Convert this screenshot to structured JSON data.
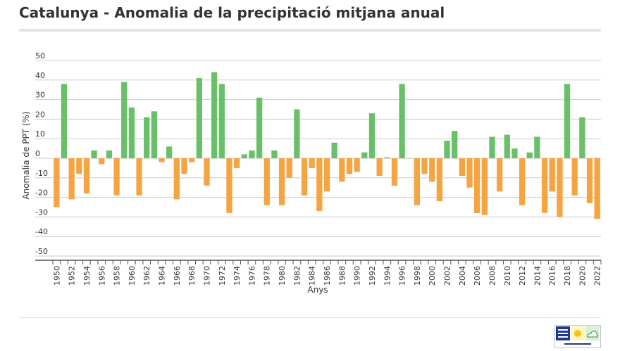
{
  "header": {
    "title": "Catalunya - Anomalia de la precipitació mitjana anual"
  },
  "logo": {
    "icon": "meteocat-logo-icon"
  },
  "colors": {
    "positive": "#6abf69",
    "negative": "#f5a442",
    "grid": "#cccccc"
  },
  "chart_data": {
    "type": "bar",
    "title": "Catalunya - Anomalia de la precipitació mitjana anual",
    "xlabel": "Anys",
    "ylabel": "Anomalia de PPT (%)",
    "ylim": [
      -50,
      50
    ],
    "yticks": [
      50,
      40,
      30,
      20,
      10,
      0,
      -10,
      -20,
      -30,
      -40,
      -50
    ],
    "grid": true,
    "legend": "none",
    "xtick_labels": [
      "1950",
      "1952",
      "1954",
      "1956",
      "1958",
      "1960",
      "1962",
      "1964",
      "1966",
      "1968",
      "1970",
      "1972",
      "1974",
      "1976",
      "1978",
      "1980",
      "1982",
      "1984",
      "1986",
      "1988",
      "1990",
      "1992",
      "1994",
      "1996",
      "1998",
      "2000",
      "2002",
      "2004",
      "2006",
      "2008",
      "2010",
      "2012",
      "2014",
      "2016",
      "2018",
      "2020",
      "2022"
    ],
    "categories": [
      "1950",
      "1951",
      "1952",
      "1953",
      "1954",
      "1955",
      "1956",
      "1957",
      "1958",
      "1959",
      "1960",
      "1961",
      "1962",
      "1963",
      "1964",
      "1965",
      "1966",
      "1967",
      "1968",
      "1969",
      "1970",
      "1971",
      "1972",
      "1973",
      "1974",
      "1975",
      "1976",
      "1977",
      "1978",
      "1979",
      "1980",
      "1981",
      "1982",
      "1983",
      "1984",
      "1985",
      "1986",
      "1987",
      "1988",
      "1989",
      "1990",
      "1991",
      "1992",
      "1993",
      "1994",
      "1995",
      "1996",
      "1997",
      "1998",
      "1999",
      "2000",
      "2001",
      "2002",
      "2003",
      "2004",
      "2005",
      "2006",
      "2007",
      "2008",
      "2009",
      "2010",
      "2011",
      "2012",
      "2013",
      "2014",
      "2015",
      "2016",
      "2017",
      "2018",
      "2019",
      "2020",
      "2021",
      "2022"
    ],
    "values": [
      -25,
      38,
      -21,
      -8,
      -18,
      4,
      -3,
      4,
      -19,
      39,
      26,
      -19,
      21,
      24,
      -2,
      6,
      -21,
      -8,
      -2,
      41,
      -14,
      44,
      38,
      -28,
      -5,
      2,
      4,
      31,
      -24,
      4,
      -24,
      -10,
      25,
      -19,
      -5,
      -27,
      -17,
      8,
      -12,
      -8,
      -7,
      3,
      23,
      -9,
      0.5,
      -14,
      38,
      0,
      -24,
      -8,
      -12,
      -22,
      9,
      14,
      -9,
      -15,
      -28,
      -29,
      11,
      -17,
      12,
      5,
      -24,
      3,
      11,
      -28,
      -17,
      -30,
      38,
      -19,
      21,
      -23,
      -31
    ]
  }
}
